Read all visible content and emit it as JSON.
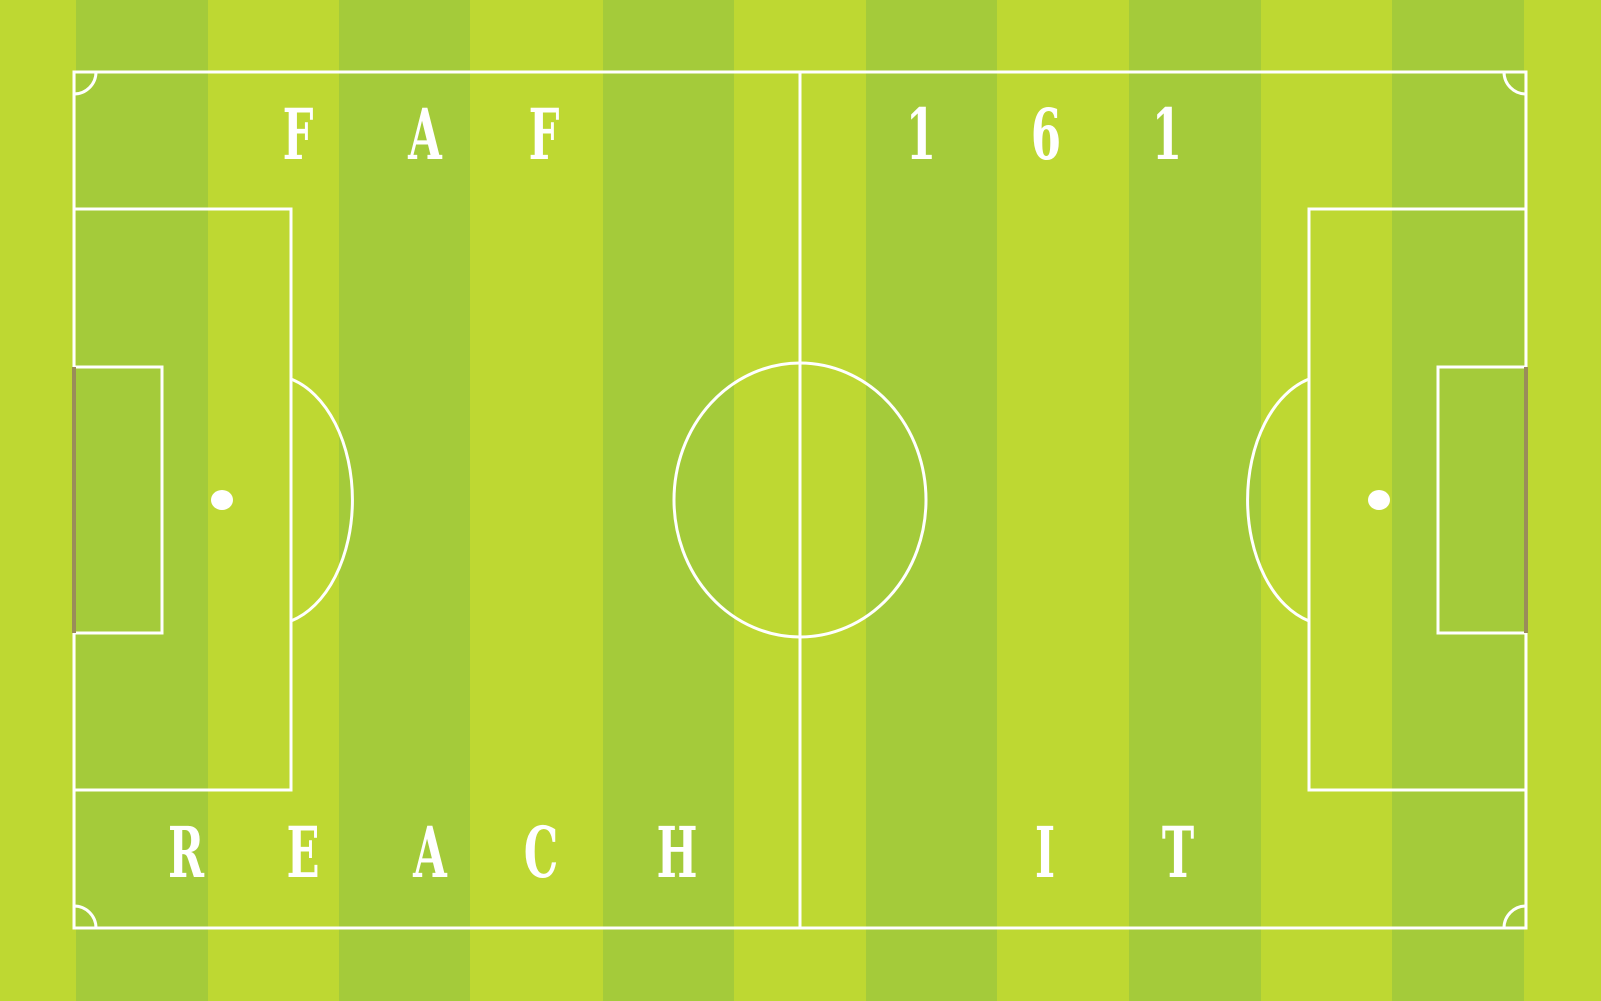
{
  "colors": {
    "light_stripe": "#bed832",
    "dark_stripe": "#a4cb3a",
    "lines": "#ffffff",
    "goal": "#9a8c5a",
    "text": "#ffffff"
  },
  "top_letters": [
    "F",
    "A",
    "F"
  ],
  "top_numbers": [
    "1",
    "6",
    "1"
  ],
  "bottom_word_1": [
    "R",
    "E",
    "A",
    "C",
    "H"
  ],
  "bottom_word_2": [
    "I",
    "T"
  ]
}
